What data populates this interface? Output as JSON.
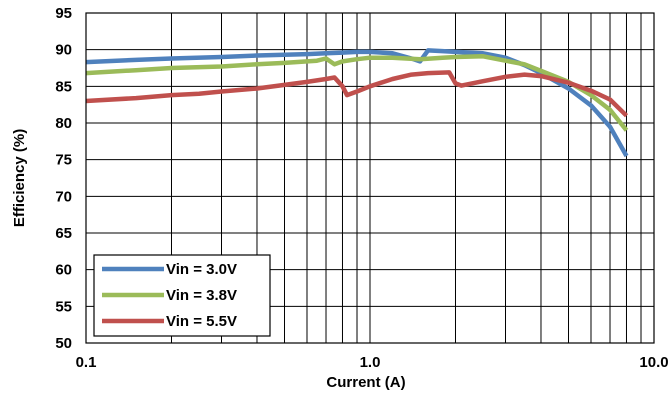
{
  "chart_data": {
    "type": "line",
    "title": "",
    "xlabel": "Current (A)",
    "ylabel": "Efficiency (%)",
    "x_scale": "log",
    "xlim": [
      0.1,
      10.0
    ],
    "ylim": [
      50,
      95
    ],
    "x_ticks": [
      {
        "value": 0.1,
        "label": "0.1"
      },
      {
        "value": 1.0,
        "label": "1.0"
      },
      {
        "value": 10.0,
        "label": "10.0"
      }
    ],
    "y_ticks": [
      {
        "value": 95,
        "label": "95"
      },
      {
        "value": 90,
        "label": "90"
      },
      {
        "value": 85,
        "label": "85"
      },
      {
        "value": 80,
        "label": "80"
      },
      {
        "value": 75,
        "label": "75"
      },
      {
        "value": 70,
        "label": "70"
      },
      {
        "value": 65,
        "label": "65"
      },
      {
        "value": 60,
        "label": "60"
      },
      {
        "value": 55,
        "label": "55"
      },
      {
        "value": 50,
        "label": "50"
      }
    ],
    "grid": true,
    "legend_position": "bottom-left",
    "series": [
      {
        "name": "Vin = 3.0V",
        "color": "#4f81bd",
        "points": [
          [
            0.1,
            88.3
          ],
          [
            0.15,
            88.6
          ],
          [
            0.2,
            88.8
          ],
          [
            0.3,
            89.0
          ],
          [
            0.4,
            89.2
          ],
          [
            0.5,
            89.3
          ],
          [
            0.6,
            89.4
          ],
          [
            0.7,
            89.5
          ],
          [
            0.8,
            89.6
          ],
          [
            0.9,
            89.7
          ],
          [
            1.0,
            89.7
          ],
          [
            1.2,
            89.5
          ],
          [
            1.4,
            88.8
          ],
          [
            1.5,
            88.4
          ],
          [
            1.6,
            89.9
          ],
          [
            1.8,
            89.8
          ],
          [
            2.0,
            89.7
          ],
          [
            2.5,
            89.5
          ],
          [
            3.0,
            88.9
          ],
          [
            3.5,
            87.9
          ],
          [
            4.0,
            86.8
          ],
          [
            5.0,
            84.7
          ],
          [
            6.0,
            82.4
          ],
          [
            7.0,
            79.5
          ],
          [
            8.0,
            75.5
          ]
        ]
      },
      {
        "name": "Vin = 3.8V",
        "color": "#9bbb59",
        "points": [
          [
            0.1,
            86.8
          ],
          [
            0.15,
            87.2
          ],
          [
            0.2,
            87.5
          ],
          [
            0.3,
            87.7
          ],
          [
            0.4,
            88.0
          ],
          [
            0.5,
            88.2
          ],
          [
            0.6,
            88.4
          ],
          [
            0.65,
            88.5
          ],
          [
            0.7,
            88.8
          ],
          [
            0.75,
            88.0
          ],
          [
            0.8,
            88.4
          ],
          [
            0.9,
            88.7
          ],
          [
            1.0,
            88.9
          ],
          [
            1.2,
            88.9
          ],
          [
            1.5,
            88.7
          ],
          [
            1.8,
            88.9
          ],
          [
            2.0,
            89.0
          ],
          [
            2.5,
            89.1
          ],
          [
            3.0,
            88.5
          ],
          [
            3.5,
            88.0
          ],
          [
            4.0,
            87.1
          ],
          [
            5.0,
            85.6
          ],
          [
            6.0,
            83.8
          ],
          [
            7.0,
            81.8
          ],
          [
            8.0,
            79.0
          ]
        ]
      },
      {
        "name": "Vin = 5.5V",
        "color": "#c0504d",
        "points": [
          [
            0.1,
            83.0
          ],
          [
            0.15,
            83.4
          ],
          [
            0.2,
            83.8
          ],
          [
            0.25,
            84.0
          ],
          [
            0.3,
            84.3
          ],
          [
            0.4,
            84.7
          ],
          [
            0.5,
            85.2
          ],
          [
            0.6,
            85.6
          ],
          [
            0.7,
            86.0
          ],
          [
            0.75,
            86.2
          ],
          [
            0.8,
            85.0
          ],
          [
            0.83,
            83.8
          ],
          [
            0.9,
            84.3
          ],
          [
            1.0,
            85.0
          ],
          [
            1.2,
            86.0
          ],
          [
            1.4,
            86.6
          ],
          [
            1.6,
            86.8
          ],
          [
            1.9,
            86.9
          ],
          [
            2.0,
            85.4
          ],
          [
            2.1,
            85.1
          ],
          [
            2.5,
            85.7
          ],
          [
            3.0,
            86.3
          ],
          [
            3.5,
            86.6
          ],
          [
            4.0,
            86.4
          ],
          [
            5.0,
            85.5
          ],
          [
            6.0,
            84.4
          ],
          [
            7.0,
            83.2
          ],
          [
            8.0,
            81.0
          ]
        ]
      }
    ]
  }
}
